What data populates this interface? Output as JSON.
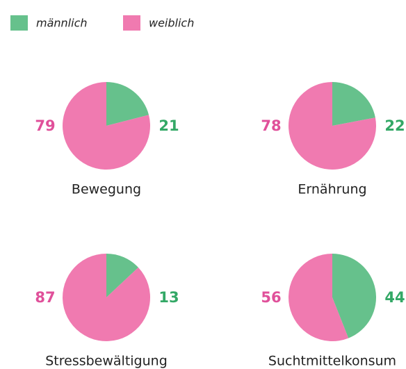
{
  "chart_data": [
    {
      "type": "pie",
      "title": "Bewegung",
      "categories": [
        "männlich",
        "weiblich"
      ],
      "values": [
        21,
        79
      ],
      "colors": [
        "#66c18c",
        "#f07ab0"
      ],
      "legend": "top-left"
    },
    {
      "type": "pie",
      "title": "Ernährung",
      "categories": [
        "männlich",
        "weiblich"
      ],
      "values": [
        22,
        78
      ],
      "colors": [
        "#66c18c",
        "#f07ab0"
      ],
      "legend": "top-left"
    },
    {
      "type": "pie",
      "title": "Stressbewältigung",
      "categories": [
        "männlich",
        "weiblich"
      ],
      "values": [
        13,
        87
      ],
      "colors": [
        "#66c18c",
        "#f07ab0"
      ],
      "legend": "top-left"
    },
    {
      "type": "pie",
      "title": "Suchtmittelkonsum",
      "categories": [
        "männlich",
        "weiblich"
      ],
      "values": [
        44,
        56
      ],
      "colors": [
        "#66c18c",
        "#f07ab0"
      ],
      "legend": "top-left"
    }
  ]
}
